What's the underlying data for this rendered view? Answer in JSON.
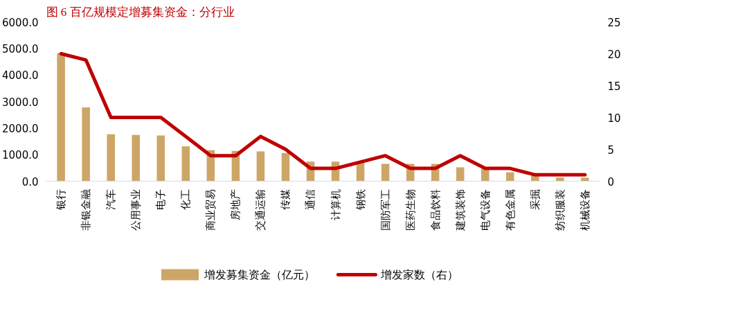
{
  "chart_data": {
    "type": "bar",
    "title": "图 6 百亿规模定增募集资金：分行业",
    "categories": [
      "银行",
      "非银金融",
      "汽车",
      "公用事业",
      "电子",
      "化工",
      "商业贸易",
      "房地产",
      "交通运输",
      "传媒",
      "通信",
      "计算机",
      "钢铁",
      "国防军工",
      "医药生物",
      "食品饮料",
      "建筑装饰",
      "电气设备",
      "有色金属",
      "采掘",
      "纺织服装",
      "机械设备"
    ],
    "series": [
      {
        "name": "增发募集资金（亿元）",
        "color": "#cda667",
        "values": [
          4820,
          2780,
          1770,
          1740,
          1720,
          1310,
          1170,
          1140,
          1120,
          1060,
          740,
          740,
          710,
          650,
          650,
          650,
          520,
          460,
          330,
          260,
          140,
          130
        ]
      },
      {
        "name": "增发家数（右）",
        "type": "line",
        "axis": "y2",
        "color": "#c00000",
        "values": [
          20,
          19,
          10,
          10,
          10,
          7,
          4,
          4,
          7,
          5,
          2,
          2,
          3,
          4,
          2,
          2,
          4,
          2,
          2,
          1,
          1,
          1
        ]
      }
    ],
    "ylim": [
      0,
      6000
    ],
    "yticks": [
      {
        "value": 0,
        "label": "0.0"
      },
      {
        "value": 1000,
        "label": "1000.0"
      },
      {
        "value": 2000,
        "label": "2000.0"
      },
      {
        "value": 3000,
        "label": "3000.0"
      },
      {
        "value": 4000,
        "label": "4000.0"
      },
      {
        "value": 5000,
        "label": "5000.0"
      },
      {
        "value": 6000,
        "label": "6000.0"
      }
    ],
    "y2lim": [
      0,
      25
    ],
    "y2ticks": [
      0,
      5,
      10,
      15,
      20,
      25
    ],
    "grid": false,
    "legend": "bottom",
    "line_style": "solid",
    "marker": "none"
  }
}
